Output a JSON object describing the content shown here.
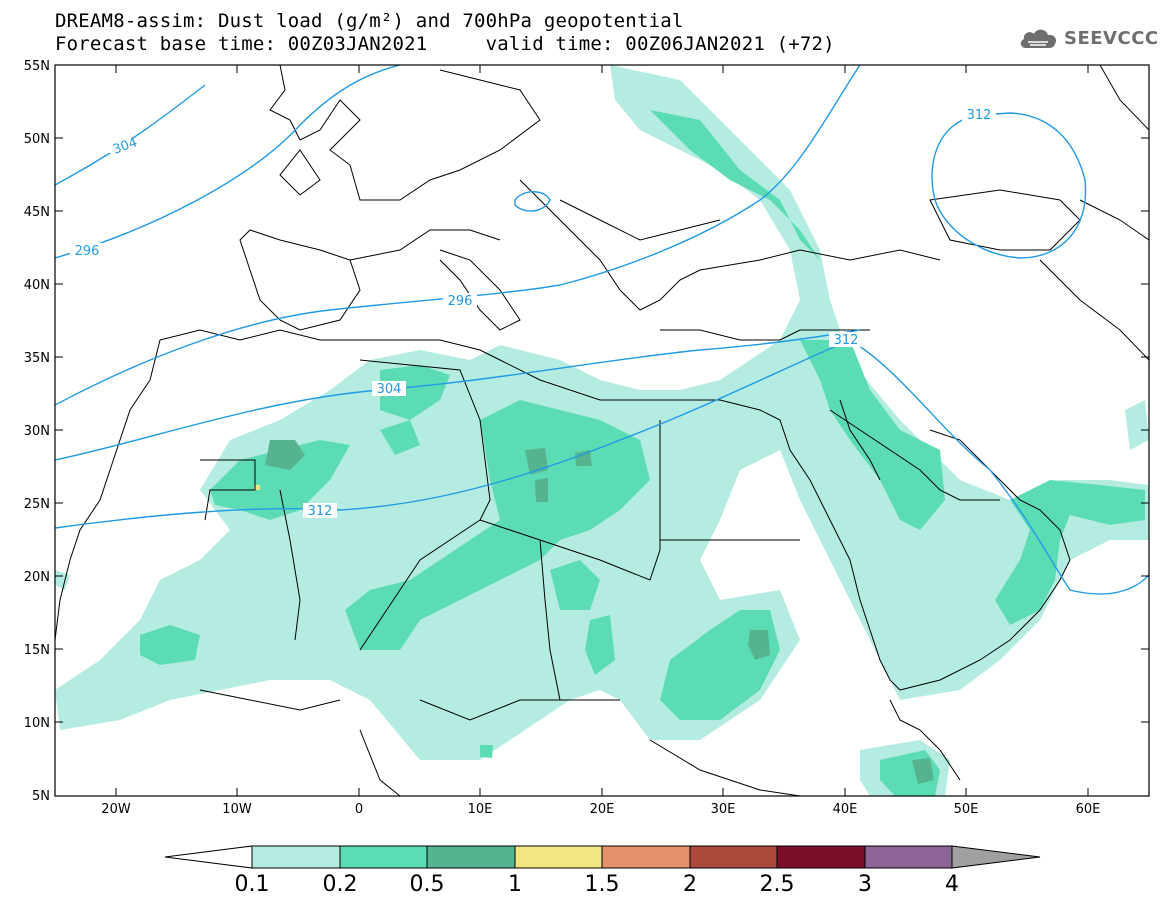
{
  "title": {
    "line1": "DREAM8-assim: Dust load (g/m²) and 700hPa geopotential",
    "line2": "Forecast base time: 00Z03JAN2021     valid time: 00Z06JAN2021 (+72)"
  },
  "logo": {
    "icon": "cloud-icon",
    "text": "SEEVCCC"
  },
  "map": {
    "lon_range": [
      -25,
      65
    ],
    "lat_range": [
      5,
      55
    ],
    "lat_ticks": [
      "55N",
      "50N",
      "45N",
      "40N",
      "35N",
      "30N",
      "25N",
      "20N",
      "15N",
      "10N",
      "5N"
    ],
    "lon_ticks": [
      "20W",
      "10W",
      "0",
      "10E",
      "20E",
      "30E",
      "40E",
      "50E",
      "60E"
    ],
    "contour_color": "#1f9be6",
    "contour_labels": [
      "304",
      "296",
      "296",
      "304",
      "312",
      "312",
      "312"
    ]
  },
  "colorbar": {
    "levels": [
      "0.1",
      "0.2",
      "0.5",
      "1",
      "1.5",
      "2",
      "2.5",
      "3",
      "4"
    ],
    "colors": [
      "#ffffff",
      "#b4ece1",
      "#5cdcb4",
      "#55b48f",
      "#f2e683",
      "#e6916e",
      "#aa4a3c",
      "#7c0e2a",
      "#8c6496",
      "#a0a0a0"
    ]
  }
}
